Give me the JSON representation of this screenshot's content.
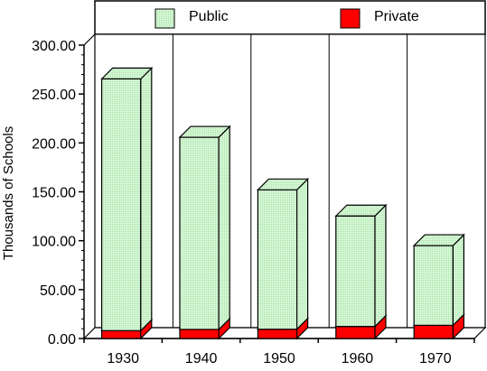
{
  "chart_data": {
    "type": "bar",
    "stacked": true,
    "style": "3d",
    "categories": [
      "1930",
      "1940",
      "1950",
      "1960",
      "1970"
    ],
    "series": [
      {
        "name": "Private",
        "values": [
          8,
          9.3,
          9.5,
          12.3,
          13.5
        ],
        "color": "#ff0000"
      },
      {
        "name": "Public",
        "values": [
          257.5,
          196.5,
          142.5,
          113,
          81.5
        ],
        "color": "#ccf5cc"
      }
    ],
    "ylabel": "Thousands of Schools",
    "ylim": [
      0,
      300
    ],
    "yticks": [
      "0.00",
      "50.00",
      "100.00",
      "150.00",
      "200.00",
      "250.00",
      "300.00"
    ],
    "grid": "vertical-category-lines",
    "legend": "top"
  }
}
